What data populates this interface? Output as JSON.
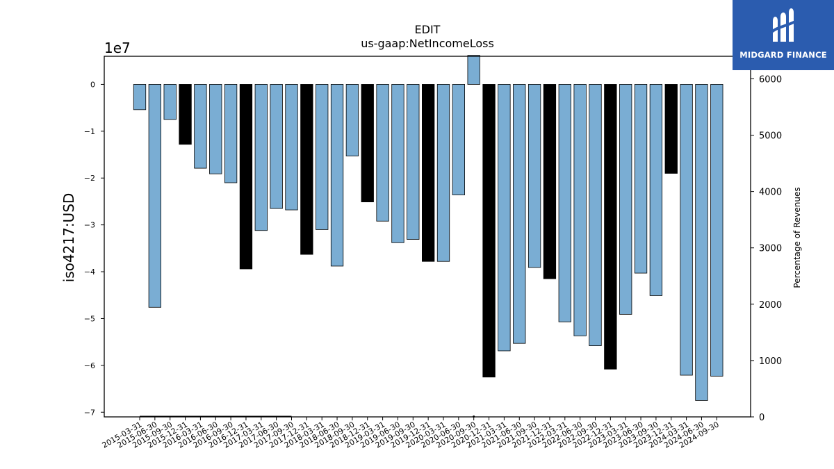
{
  "chart_data": {
    "type": "bar",
    "title": "EDIT",
    "subtitle": "us-gaap:NetIncomeLoss",
    "ylabel": "iso4217:USD",
    "y2label": "Percentage of Revenues",
    "offset_label": "1e7",
    "ylim": [
      -71000000,
      6000000
    ],
    "y2lim": [
      0,
      6400
    ],
    "yticks": [
      0,
      -10000000,
      -20000000,
      -30000000,
      -40000000,
      -50000000,
      -60000000,
      -70000000
    ],
    "ytick_labels": [
      "0",
      "−1",
      "−2",
      "−3",
      "−4",
      "−5",
      "−6",
      "−7"
    ],
    "y2ticks": [
      0,
      1000,
      2000,
      3000,
      4000,
      5000,
      6000
    ],
    "categories": [
      "2015-03-31",
      "2015-06-30",
      "2015-09-30",
      "2015-12-31",
      "2016-03-31",
      "2016-06-30",
      "2016-09-30",
      "2016-12-31",
      "2017-03-31",
      "2017-06-30",
      "2017-09-30",
      "2017-12-31",
      "2018-03-31",
      "2018-06-30",
      "2018-09-30",
      "2018-12-31",
      "2019-03-31",
      "2019-06-30",
      "2019-09-30",
      "2019-12-31",
      "2020-03-31",
      "2020-06-30",
      "2020-09-30",
      "2020-12-31",
      "2021-03-31",
      "2021-06-30",
      "2021-09-30",
      "2021-12-31",
      "2022-03-31",
      "2022-06-30",
      "2022-09-30",
      "2022-12-31",
      "2023-03-31",
      "2023-06-30",
      "2023-09-30",
      "2023-12-31",
      "2024-03-31",
      "2024-06-30",
      "2024-09-30"
    ],
    "values": [
      -5400000,
      -47600000,
      -7500000,
      -12800000,
      -17900000,
      -19100000,
      -21000000,
      -39400000,
      -31200000,
      -26500000,
      -26800000,
      -36300000,
      -31000000,
      -38800000,
      -15300000,
      -25100000,
      -29200000,
      -33800000,
      -33100000,
      -37800000,
      -37800000,
      -23600000,
      6200000,
      -62500000,
      -56900000,
      -55300000,
      -39100000,
      -41500000,
      -50700000,
      -53700000,
      -55800000,
      -60800000,
      -49100000,
      -40300000,
      -45100000,
      -19000000,
      -62100000,
      -67500000,
      -62300000
    ],
    "highlight": [
      false,
      false,
      false,
      true,
      false,
      false,
      false,
      true,
      false,
      false,
      false,
      true,
      false,
      false,
      false,
      true,
      false,
      false,
      false,
      true,
      false,
      false,
      false,
      true,
      false,
      false,
      false,
      true,
      false,
      false,
      false,
      true,
      false,
      false,
      false,
      true,
      false,
      false,
      false
    ],
    "secondary_series": {
      "name": "Percentage of Revenues",
      "values": [
        0,
        0,
        0,
        0,
        0,
        0,
        0,
        0,
        0,
        0,
        0,
        null,
        null,
        null,
        null,
        null,
        null,
        null,
        null,
        null,
        null,
        null,
        0,
        null,
        null,
        null,
        null,
        null,
        null,
        null,
        null,
        null,
        null,
        null,
        null,
        null,
        null,
        null,
        null
      ]
    },
    "colors": {
      "bar": "#7aadd3",
      "highlight": "#000000",
      "edge": "#000000",
      "line": "#000000"
    },
    "grid": false,
    "legend": "none"
  },
  "logo": {
    "text": "MIDGARD FINANCE",
    "icon": "midgard-logo-icon",
    "bg": "#2b5caf"
  }
}
